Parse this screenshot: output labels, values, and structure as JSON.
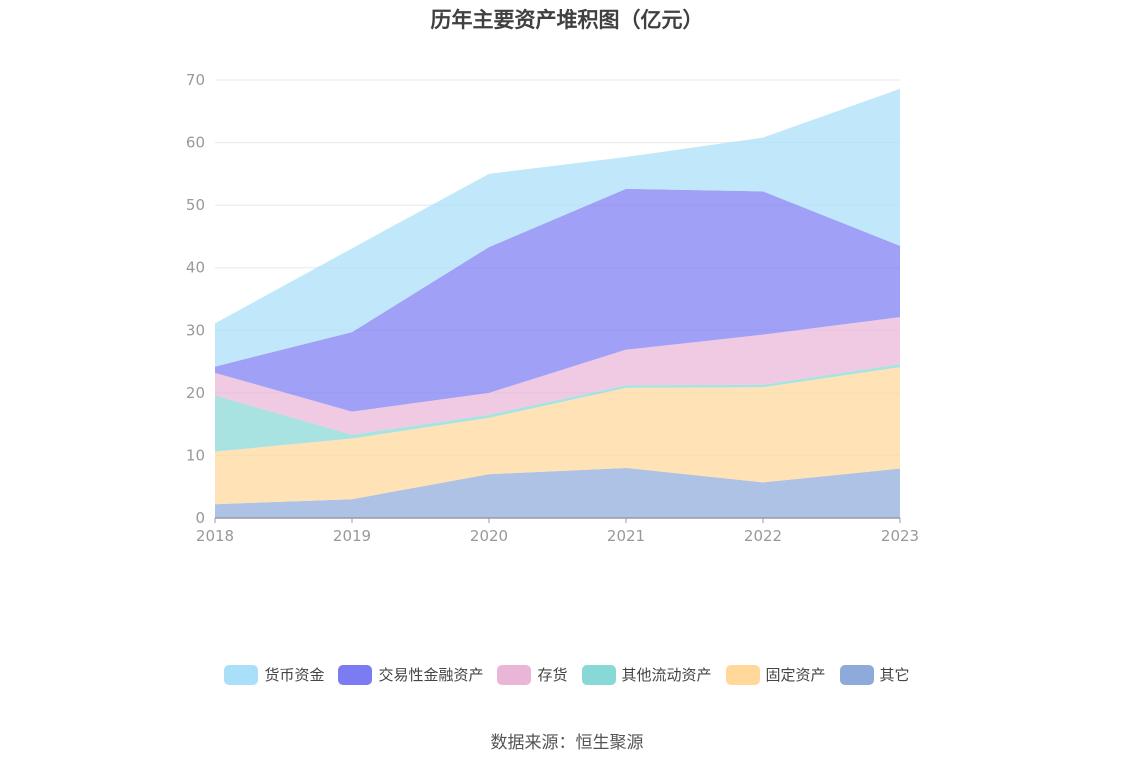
{
  "title": "历年主要资产堆积图（亿元）",
  "source": "数据来源：恒生聚源",
  "chart_data": {
    "type": "area",
    "stacked": true,
    "title": "历年主要资产堆积图（亿元）",
    "x": [
      "2018",
      "2019",
      "2020",
      "2021",
      "2022",
      "2023"
    ],
    "ylim": [
      0,
      70
    ],
    "yticks": [
      0,
      10,
      20,
      30,
      40,
      50,
      60,
      70
    ],
    "grid": true,
    "legend_position": "bottom",
    "series": [
      {
        "name": "其它",
        "color": "#8eaadb",
        "values": [
          2.2,
          3.0,
          7.0,
          8.0,
          5.7,
          7.9
        ]
      },
      {
        "name": "固定资产",
        "color": "#ffd89a",
        "values": [
          8.4,
          9.7,
          9.0,
          12.8,
          15.2,
          16.2
        ]
      },
      {
        "name": "其他流动资产",
        "color": "#88d8d6",
        "values": [
          9.0,
          0.6,
          0.5,
          0.4,
          0.4,
          0.5
        ]
      },
      {
        "name": "存货",
        "color": "#e9b6d7",
        "values": [
          3.6,
          3.7,
          3.5,
          5.7,
          8.0,
          7.5
        ]
      },
      {
        "name": "交易性金融资产",
        "color": "#7b7bf2",
        "values": [
          1.0,
          12.7,
          23.3,
          25.7,
          22.9,
          11.4
        ]
      },
      {
        "name": "货币资金",
        "color": "#a9dff8",
        "values": [
          6.9,
          13.4,
          11.7,
          5.1,
          8.6,
          25.1
        ]
      }
    ]
  }
}
